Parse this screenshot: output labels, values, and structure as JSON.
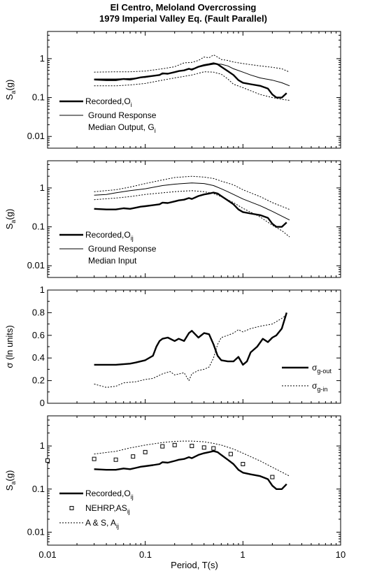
{
  "figure": {
    "title_line1": "El Centro, Meloland Overcrossing",
    "title_line2": "1979 Imperial Valley Eq. (Fault Parallel)",
    "xlabel": "Period, T(s)",
    "x_ticks": [
      "0.01",
      "0.1",
      "1",
      "10"
    ]
  },
  "chart_data": [
    {
      "type": "line",
      "xscale": "log",
      "yscale": "log",
      "xlim": [
        0.01,
        10
      ],
      "ylim": [
        0.005,
        5
      ],
      "ylabel": "Sa(g)",
      "y_ticks": [
        {
          "v": 0.01,
          "label": "0.01"
        },
        {
          "v": 0.1,
          "label": "0.1"
        },
        {
          "v": 1,
          "label": "1"
        }
      ],
      "legend": {
        "position": "left",
        "entries": [
          {
            "style": "thick",
            "lines": [
              "Recorded,O",
              "i"
            ]
          },
          {
            "style": "thin",
            "lines": [
              "Ground Response",
              "Median Output, G",
              "i"
            ]
          }
        ]
      },
      "series": [
        {
          "name": "Recorded,Oi",
          "style": "thick",
          "x": [
            0.03,
            0.04,
            0.05,
            0.06,
            0.07,
            0.08,
            0.09,
            0.1,
            0.12,
            0.14,
            0.15,
            0.17,
            0.2,
            0.22,
            0.25,
            0.28,
            0.3,
            0.35,
            0.4,
            0.45,
            0.5,
            0.55,
            0.6,
            0.7,
            0.8,
            0.9,
            1.0,
            1.2,
            1.5,
            1.8,
            2.0,
            2.2,
            2.5,
            2.8
          ],
          "y": [
            0.29,
            0.28,
            0.28,
            0.3,
            0.29,
            0.31,
            0.33,
            0.34,
            0.36,
            0.38,
            0.42,
            0.41,
            0.45,
            0.48,
            0.5,
            0.55,
            0.52,
            0.62,
            0.68,
            0.72,
            0.76,
            0.72,
            0.62,
            0.48,
            0.38,
            0.28,
            0.24,
            0.22,
            0.2,
            0.17,
            0.12,
            0.1,
            0.1,
            0.13
          ]
        },
        {
          "name": "Ground Response Median Output, Gi",
          "style": "thin",
          "x": [
            0.03,
            0.05,
            0.07,
            0.1,
            0.15,
            0.2,
            0.3,
            0.4,
            0.5,
            0.6,
            0.7,
            0.8,
            1.0,
            1.2,
            1.5,
            2.0,
            2.5,
            3.0
          ],
          "y": [
            0.3,
            0.3,
            0.31,
            0.33,
            0.4,
            0.45,
            0.55,
            0.65,
            0.72,
            0.72,
            0.65,
            0.55,
            0.45,
            0.38,
            0.32,
            0.28,
            0.24,
            0.2
          ]
        },
        {
          "name": "upper",
          "style": "dotted",
          "x": [
            0.03,
            0.05,
            0.07,
            0.1,
            0.15,
            0.2,
            0.25,
            0.3,
            0.35,
            0.4,
            0.45,
            0.5,
            0.55,
            0.6,
            0.7,
            0.8,
            1.0,
            1.2,
            1.5,
            2.0,
            2.5,
            3.0
          ],
          "y": [
            0.45,
            0.46,
            0.46,
            0.48,
            0.55,
            0.62,
            0.78,
            0.8,
            0.9,
            1.1,
            1.05,
            1.25,
            1.1,
            0.95,
            0.9,
            0.82,
            0.75,
            0.7,
            0.65,
            0.6,
            0.55,
            0.45
          ]
        },
        {
          "name": "lower",
          "style": "dotted",
          "x": [
            0.03,
            0.05,
            0.07,
            0.1,
            0.15,
            0.2,
            0.25,
            0.3,
            0.35,
            0.4,
            0.5,
            0.6,
            0.7,
            0.8,
            1.0,
            1.2,
            1.5,
            2.0,
            2.5,
            3.0
          ],
          "y": [
            0.2,
            0.2,
            0.21,
            0.23,
            0.28,
            0.32,
            0.35,
            0.38,
            0.42,
            0.46,
            0.45,
            0.4,
            0.3,
            0.22,
            0.18,
            0.15,
            0.12,
            0.1,
            0.09,
            0.085
          ]
        }
      ]
    },
    {
      "type": "line",
      "xscale": "log",
      "yscale": "log",
      "xlim": [
        0.01,
        10
      ],
      "ylim": [
        0.005,
        5
      ],
      "ylabel": "Sa(g)",
      "y_ticks": [
        {
          "v": 0.01,
          "label": "0.01"
        },
        {
          "v": 0.1,
          "label": "0.1"
        },
        {
          "v": 1,
          "label": "1"
        }
      ],
      "legend": {
        "position": "left",
        "entries": [
          {
            "style": "thick",
            "lines": [
              "Recorded,O",
              "ij"
            ]
          },
          {
            "style": "thin",
            "lines": [
              "Ground Response",
              "Median Input"
            ]
          }
        ]
      },
      "series": [
        {
          "name": "Recorded,Oij",
          "style": "thick",
          "x": [
            0.03,
            0.04,
            0.05,
            0.06,
            0.07,
            0.08,
            0.09,
            0.1,
            0.12,
            0.14,
            0.15,
            0.17,
            0.2,
            0.22,
            0.25,
            0.28,
            0.3,
            0.35,
            0.4,
            0.45,
            0.5,
            0.55,
            0.6,
            0.7,
            0.8,
            0.9,
            1.0,
            1.2,
            1.5,
            1.8,
            2.0,
            2.2,
            2.5,
            2.8
          ],
          "y": [
            0.29,
            0.28,
            0.28,
            0.3,
            0.29,
            0.31,
            0.33,
            0.34,
            0.36,
            0.38,
            0.42,
            0.41,
            0.45,
            0.48,
            0.5,
            0.55,
            0.52,
            0.62,
            0.68,
            0.72,
            0.76,
            0.72,
            0.62,
            0.48,
            0.38,
            0.28,
            0.24,
            0.22,
            0.2,
            0.17,
            0.12,
            0.1,
            0.1,
            0.13
          ]
        },
        {
          "name": "Ground Response Median Input",
          "style": "thin",
          "x": [
            0.03,
            0.04,
            0.05,
            0.07,
            0.1,
            0.15,
            0.2,
            0.3,
            0.4,
            0.5,
            0.6,
            0.7,
            0.8,
            1.0,
            1.5,
            2.0,
            3.0
          ],
          "y": [
            0.65,
            0.68,
            0.75,
            0.85,
            0.95,
            1.15,
            1.25,
            1.35,
            1.3,
            1.15,
            0.95,
            0.8,
            0.68,
            0.52,
            0.35,
            0.25,
            0.15
          ]
        },
        {
          "name": "upper",
          "style": "dotted",
          "x": [
            0.03,
            0.05,
            0.07,
            0.1,
            0.15,
            0.2,
            0.3,
            0.4,
            0.5,
            0.6,
            0.8,
            1.0,
            1.5,
            2.0,
            3.0
          ],
          "y": [
            0.8,
            0.9,
            1.05,
            1.3,
            1.6,
            1.85,
            2.0,
            1.9,
            1.75,
            1.5,
            1.2,
            0.9,
            0.6,
            0.42,
            0.28
          ]
        },
        {
          "name": "lower",
          "style": "dotted",
          "x": [
            0.03,
            0.05,
            0.07,
            0.1,
            0.15,
            0.2,
            0.3,
            0.4,
            0.5,
            0.6,
            0.8,
            1.0,
            1.5,
            2.0,
            2.5,
            3.0
          ],
          "y": [
            0.5,
            0.55,
            0.6,
            0.68,
            0.75,
            0.8,
            0.85,
            0.8,
            0.72,
            0.6,
            0.42,
            0.3,
            0.18,
            0.11,
            0.08,
            0.055
          ]
        }
      ]
    },
    {
      "type": "line",
      "xscale": "log",
      "yscale": "linear",
      "xlim": [
        0.01,
        10
      ],
      "ylim": [
        0,
        1
      ],
      "ylabel": "σ (ln units)",
      "y_ticks": [
        {
          "v": 0,
          "label": "0"
        },
        {
          "v": 0.2,
          "label": "0.2"
        },
        {
          "v": 0.4,
          "label": "0.4"
        },
        {
          "v": 0.6,
          "label": "0.6"
        },
        {
          "v": 0.8,
          "label": "0.8"
        },
        {
          "v": 1,
          "label": "1"
        }
      ],
      "legend": {
        "position": "right",
        "entries": [
          {
            "style": "thick",
            "lines": [
              "σ",
              "g-out"
            ]
          },
          {
            "style": "dotted",
            "lines": [
              "σ",
              "g-in"
            ]
          }
        ]
      },
      "series": [
        {
          "name": "σg-out",
          "style": "thick",
          "x": [
            0.03,
            0.05,
            0.07,
            0.08,
            0.1,
            0.12,
            0.13,
            0.14,
            0.15,
            0.17,
            0.2,
            0.22,
            0.25,
            0.28,
            0.3,
            0.35,
            0.4,
            0.45,
            0.5,
            0.55,
            0.6,
            0.7,
            0.8,
            0.9,
            1.0,
            1.1,
            1.2,
            1.4,
            1.6,
            1.8,
            2.0,
            2.2,
            2.5,
            2.8
          ],
          "y": [
            0.34,
            0.34,
            0.35,
            0.36,
            0.38,
            0.42,
            0.5,
            0.55,
            0.57,
            0.58,
            0.55,
            0.57,
            0.55,
            0.62,
            0.64,
            0.58,
            0.62,
            0.61,
            0.52,
            0.42,
            0.38,
            0.37,
            0.37,
            0.41,
            0.34,
            0.37,
            0.45,
            0.5,
            0.57,
            0.54,
            0.58,
            0.6,
            0.66,
            0.8
          ]
        },
        {
          "name": "σg-in",
          "style": "dotted",
          "x": [
            0.03,
            0.04,
            0.05,
            0.06,
            0.08,
            0.1,
            0.12,
            0.15,
            0.18,
            0.2,
            0.25,
            0.28,
            0.3,
            0.35,
            0.4,
            0.45,
            0.5,
            0.55,
            0.6,
            0.7,
            0.8,
            0.9,
            1.0,
            1.2,
            1.5,
            2.0,
            2.5,
            2.8
          ],
          "y": [
            0.17,
            0.14,
            0.15,
            0.18,
            0.19,
            0.21,
            0.22,
            0.26,
            0.28,
            0.25,
            0.27,
            0.2,
            0.26,
            0.29,
            0.3,
            0.32,
            0.4,
            0.52,
            0.58,
            0.6,
            0.62,
            0.65,
            0.63,
            0.66,
            0.68,
            0.7,
            0.75,
            0.78
          ]
        }
      ]
    },
    {
      "type": "line",
      "xscale": "log",
      "yscale": "log",
      "xlim": [
        0.01,
        10
      ],
      "ylim": [
        0.005,
        5
      ],
      "ylabel": "Sa(g)",
      "y_ticks": [
        {
          "v": 0.01,
          "label": "0.01"
        },
        {
          "v": 0.1,
          "label": "0.1"
        },
        {
          "v": 1,
          "label": "1"
        }
      ],
      "legend": {
        "position": "left",
        "entries": [
          {
            "style": "thick",
            "lines": [
              "Recorded,O",
              "ij"
            ]
          },
          {
            "style": "square",
            "lines": [
              "NEHRP,AS",
              "ij"
            ]
          },
          {
            "style": "dotted",
            "lines": [
              "A & S, A",
              "ij"
            ]
          }
        ]
      },
      "series": [
        {
          "name": "Recorded,Oij",
          "style": "thick",
          "x": [
            0.03,
            0.04,
            0.05,
            0.06,
            0.07,
            0.08,
            0.09,
            0.1,
            0.12,
            0.14,
            0.15,
            0.17,
            0.2,
            0.22,
            0.25,
            0.28,
            0.3,
            0.35,
            0.4,
            0.45,
            0.5,
            0.55,
            0.6,
            0.7,
            0.8,
            0.9,
            1.0,
            1.2,
            1.5,
            1.8,
            2.0,
            2.2,
            2.5,
            2.8
          ],
          "y": [
            0.29,
            0.28,
            0.28,
            0.3,
            0.29,
            0.31,
            0.33,
            0.34,
            0.36,
            0.38,
            0.42,
            0.41,
            0.45,
            0.48,
            0.5,
            0.55,
            0.52,
            0.62,
            0.68,
            0.72,
            0.76,
            0.72,
            0.62,
            0.48,
            0.38,
            0.28,
            0.24,
            0.22,
            0.2,
            0.17,
            0.12,
            0.1,
            0.1,
            0.13
          ]
        },
        {
          "name": "NEHRP,ASij",
          "style": "square",
          "x": [
            0.01,
            0.03,
            0.05,
            0.075,
            0.1,
            0.15,
            0.2,
            0.3,
            0.4,
            0.5,
            0.75,
            1.0,
            2.0
          ],
          "y": [
            0.46,
            0.5,
            0.48,
            0.57,
            0.72,
            0.98,
            1.05,
            1.0,
            0.92,
            0.88,
            0.65,
            0.38,
            0.19
          ]
        },
        {
          "name": "A & S, Aij",
          "style": "dotted",
          "x": [
            0.03,
            0.05,
            0.07,
            0.1,
            0.15,
            0.2,
            0.25,
            0.3,
            0.4,
            0.5,
            0.6,
            0.8,
            1.0,
            1.5,
            2.0,
            3.0
          ],
          "y": [
            0.65,
            0.75,
            0.9,
            1.05,
            1.2,
            1.28,
            1.3,
            1.3,
            1.25,
            1.15,
            1.05,
            0.85,
            0.68,
            0.45,
            0.32,
            0.2
          ]
        }
      ]
    }
  ]
}
